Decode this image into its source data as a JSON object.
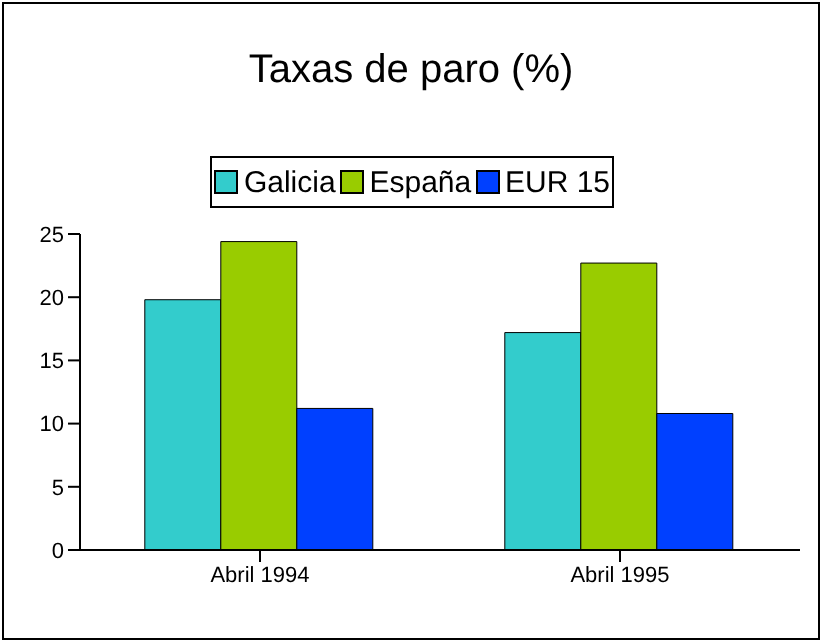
{
  "chart_data": {
    "type": "bar",
    "title": "Taxas de paro (%)",
    "categories": [
      "Abril 1994",
      "Abril 1995"
    ],
    "series": [
      {
        "name": "Galicia",
        "color": "#33cccc",
        "values": [
          19.8,
          17.2
        ]
      },
      {
        "name": "España",
        "color": "#99cc00",
        "values": [
          24.4,
          22.7
        ]
      },
      {
        "name": "EUR 15",
        "color": "#0040ff",
        "values": [
          11.2,
          10.8
        ]
      }
    ],
    "ylim": [
      0,
      25
    ],
    "yticks": [
      0,
      5,
      10,
      15,
      20,
      25
    ],
    "grid": false,
    "legend": "top"
  }
}
